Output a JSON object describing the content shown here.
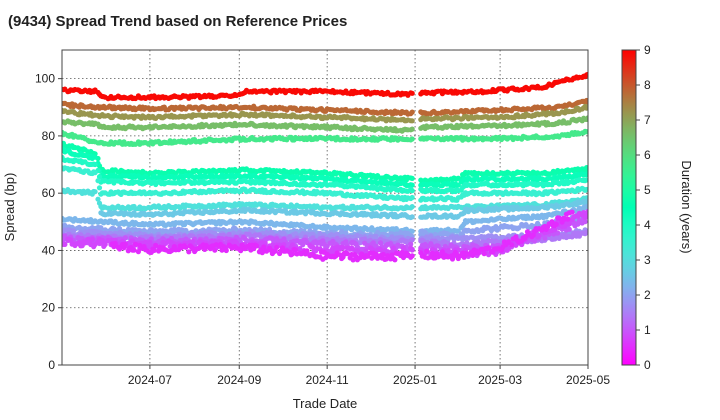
{
  "chart_data": {
    "type": "scatter",
    "title": "(9434)   Spread Trend based on Reference Prices",
    "xlabel": "Trade Date",
    "ylabel": "Spread (bp)",
    "colorbar_label": "Duration (years)",
    "x_range": [
      "2024-05-01",
      "2025-05-01"
    ],
    "ylim": [
      0,
      110
    ],
    "x_ticks": [
      "2024-07",
      "2024-09",
      "2024-11",
      "2025-01",
      "2025-03",
      "2025-05"
    ],
    "y_ticks": [
      0,
      20,
      40,
      60,
      80,
      100
    ],
    "colorbar_range": [
      0,
      9
    ],
    "colorbar_ticks": [
      0,
      1,
      2,
      3,
      4,
      5,
      6,
      7,
      8,
      9
    ],
    "colormap": "rainbow",
    "grid": true,
    "gap_dates": [
      "2024-12-30",
      "2025-01-05"
    ],
    "series": [
      {
        "duration": 8.9,
        "points": [
          [
            "2024-05-01",
            96
          ],
          [
            "2024-05-25",
            95.5
          ],
          [
            "2024-05-28",
            93.5
          ],
          [
            "2024-07-15",
            93.5
          ],
          [
            "2024-08-30",
            94
          ],
          [
            "2024-09-05",
            95.5
          ],
          [
            "2024-11-01",
            95.5
          ],
          [
            "2024-12-28",
            94.5
          ],
          [
            "2025-01-06",
            95
          ],
          [
            "2025-02-15",
            95.5
          ],
          [
            "2025-04-01",
            97
          ],
          [
            "2025-04-10",
            99
          ],
          [
            "2025-05-01",
            101
          ]
        ]
      },
      {
        "duration": 7.8,
        "points": [
          [
            "2024-05-01",
            91
          ],
          [
            "2024-05-28",
            90
          ],
          [
            "2024-07-01",
            89.5
          ],
          [
            "2024-09-05",
            90
          ],
          [
            "2024-11-01",
            89
          ],
          [
            "2024-12-28",
            88
          ],
          [
            "2025-01-06",
            88
          ],
          [
            "2025-03-01",
            89
          ],
          [
            "2025-04-10",
            90
          ],
          [
            "2025-05-01",
            92
          ]
        ]
      },
      {
        "duration": 7.2,
        "points": [
          [
            "2024-05-01",
            88.5
          ],
          [
            "2024-05-28",
            87
          ],
          [
            "2024-07-01",
            86.5
          ],
          [
            "2024-09-05",
            87.5
          ],
          [
            "2024-11-01",
            86.5
          ],
          [
            "2024-12-28",
            85.5
          ],
          [
            "2025-01-06",
            86
          ],
          [
            "2025-03-01",
            86.5
          ],
          [
            "2025-04-10",
            88
          ],
          [
            "2025-05-01",
            90
          ]
        ]
      },
      {
        "duration": 6.6,
        "points": [
          [
            "2024-05-01",
            85
          ],
          [
            "2024-05-25",
            84
          ],
          [
            "2024-05-28",
            83
          ],
          [
            "2024-07-01",
            83
          ],
          [
            "2024-09-05",
            84
          ],
          [
            "2024-11-01",
            83
          ],
          [
            "2024-12-28",
            82
          ],
          [
            "2025-01-06",
            83
          ],
          [
            "2025-03-01",
            83.5
          ],
          [
            "2025-04-10",
            84.5
          ],
          [
            "2025-05-01",
            86
          ]
        ]
      },
      {
        "duration": 5.7,
        "points": [
          [
            "2024-05-01",
            81
          ],
          [
            "2024-05-28",
            77.5
          ],
          [
            "2024-07-01",
            77.5
          ],
          [
            "2024-09-05",
            79
          ],
          [
            "2024-11-01",
            79
          ],
          [
            "2024-12-28",
            79
          ],
          [
            "2025-01-06",
            79
          ],
          [
            "2025-03-01",
            79
          ],
          [
            "2025-04-10",
            80
          ],
          [
            "2025-05-01",
            81.5
          ]
        ]
      },
      {
        "duration": 4.7,
        "points": [
          [
            "2024-05-01",
            77
          ],
          [
            "2024-05-25",
            74
          ],
          [
            "2024-05-28",
            68
          ],
          [
            "2024-07-01",
            67
          ],
          [
            "2024-09-05",
            68
          ],
          [
            "2024-11-01",
            67
          ],
          [
            "2024-12-28",
            65
          ],
          [
            "2025-01-06",
            64
          ],
          [
            "2025-02-01",
            65
          ],
          [
            "2025-02-05",
            67
          ],
          [
            "2025-04-01",
            67
          ],
          [
            "2025-05-01",
            68.5
          ]
        ]
      },
      {
        "duration": 4.3,
        "points": [
          [
            "2024-05-01",
            75
          ],
          [
            "2024-05-25",
            72
          ],
          [
            "2024-05-28",
            66
          ],
          [
            "2024-07-01",
            65.5
          ],
          [
            "2024-09-05",
            66
          ],
          [
            "2024-11-01",
            65
          ],
          [
            "2024-12-28",
            63
          ],
          [
            "2025-01-06",
            63
          ],
          [
            "2025-02-01",
            63
          ],
          [
            "2025-02-05",
            65
          ],
          [
            "2025-04-01",
            65
          ],
          [
            "2025-05-01",
            66.5
          ]
        ]
      },
      {
        "duration": 3.9,
        "points": [
          [
            "2024-05-01",
            72
          ],
          [
            "2024-05-25",
            70
          ],
          [
            "2024-05-28",
            64
          ],
          [
            "2024-07-01",
            63.5
          ],
          [
            "2024-09-05",
            64
          ],
          [
            "2024-11-01",
            63
          ],
          [
            "2024-12-28",
            61
          ],
          [
            "2025-01-06",
            61
          ],
          [
            "2025-02-01",
            61
          ],
          [
            "2025-02-05",
            63
          ],
          [
            "2025-04-01",
            63
          ],
          [
            "2025-05-01",
            64.5
          ]
        ]
      },
      {
        "duration": 3.5,
        "points": [
          [
            "2024-05-01",
            69
          ],
          [
            "2024-05-25",
            67
          ],
          [
            "2024-05-28",
            60
          ],
          [
            "2024-07-01",
            60
          ],
          [
            "2024-09-05",
            61
          ],
          [
            "2024-11-01",
            60
          ],
          [
            "2024-12-28",
            58
          ],
          [
            "2025-01-06",
            58
          ],
          [
            "2025-02-01",
            58
          ],
          [
            "2025-02-05",
            60
          ],
          [
            "2025-04-01",
            60
          ],
          [
            "2025-05-01",
            61.5
          ]
        ]
      },
      {
        "duration": 3.1,
        "points": [
          [
            "2024-05-01",
            61
          ],
          [
            "2024-05-25",
            60
          ],
          [
            "2024-05-28",
            55
          ],
          [
            "2024-07-01",
            55
          ],
          [
            "2024-09-05",
            56
          ],
          [
            "2024-11-01",
            55
          ],
          [
            "2024-12-28",
            55
          ],
          [
            "2025-01-06",
            55
          ],
          [
            "2025-02-01",
            55
          ],
          [
            "2025-04-01",
            56
          ],
          [
            "2025-05-01",
            58
          ]
        ]
      },
      {
        "duration": 2.6,
        "points": [
          [
            "2024-05-28",
            53
          ],
          [
            "2024-07-01",
            52.5
          ],
          [
            "2024-09-05",
            54
          ],
          [
            "2024-11-01",
            53
          ],
          [
            "2024-12-28",
            52
          ],
          [
            "2025-01-06",
            52
          ],
          [
            "2025-02-01",
            52
          ],
          [
            "2025-02-05",
            54
          ],
          [
            "2025-04-01",
            55
          ],
          [
            "2025-05-01",
            57
          ]
        ]
      },
      {
        "duration": 2.3,
        "points": [
          [
            "2024-05-01",
            51
          ],
          [
            "2024-07-01",
            49
          ],
          [
            "2024-09-05",
            50
          ],
          [
            "2024-11-01",
            48
          ],
          [
            "2024-12-28",
            47
          ],
          [
            "2025-01-06",
            47
          ],
          [
            "2025-02-01",
            47
          ],
          [
            "2025-02-05",
            50
          ],
          [
            "2025-04-01",
            52
          ],
          [
            "2025-05-01",
            55
          ]
        ]
      },
      {
        "duration": 2.0,
        "points": [
          [
            "2024-05-01",
            48
          ],
          [
            "2024-07-01",
            46.5
          ],
          [
            "2024-09-05",
            47
          ],
          [
            "2024-11-01",
            46
          ],
          [
            "2024-12-28",
            45.5
          ],
          [
            "2025-01-06",
            46
          ],
          [
            "2025-02-01",
            45
          ],
          [
            "2025-02-05",
            47
          ],
          [
            "2025-04-01",
            49
          ],
          [
            "2025-05-01",
            52
          ]
        ]
      },
      {
        "duration": 1.7,
        "points": [
          [
            "2024-05-01",
            46.5
          ],
          [
            "2024-07-01",
            45
          ],
          [
            "2024-09-05",
            46
          ],
          [
            "2024-11-01",
            45
          ],
          [
            "2024-12-28",
            44
          ],
          [
            "2025-01-06",
            44.5
          ],
          [
            "2025-02-01",
            44
          ],
          [
            "2025-04-01",
            45
          ],
          [
            "2025-05-01",
            47
          ]
        ]
      },
      {
        "duration": 1.4,
        "points": [
          [
            "2024-05-01",
            45
          ],
          [
            "2024-07-01",
            44
          ],
          [
            "2024-09-05",
            45
          ],
          [
            "2024-11-01",
            43.5
          ],
          [
            "2024-12-28",
            43
          ],
          [
            "2025-01-06",
            43
          ],
          [
            "2025-02-01",
            42
          ],
          [
            "2025-04-01",
            44
          ],
          [
            "2025-05-01",
            46
          ]
        ]
      },
      {
        "duration": 1.0,
        "points": [
          [
            "2024-05-01",
            44
          ],
          [
            "2024-07-01",
            43
          ],
          [
            "2024-09-05",
            43.5
          ],
          [
            "2024-11-01",
            42
          ],
          [
            "2024-12-28",
            41
          ],
          [
            "2025-01-06",
            41.5
          ],
          [
            "2025-02-01",
            40.5
          ],
          [
            "2025-03-01",
            41
          ],
          [
            "2025-04-01",
            45
          ],
          [
            "2025-05-01",
            51
          ]
        ]
      },
      {
        "duration": 0.8,
        "points": [
          [
            "2024-05-01",
            43
          ],
          [
            "2024-07-01",
            42
          ],
          [
            "2024-09-05",
            42
          ],
          [
            "2024-11-01",
            40
          ],
          [
            "2024-12-28",
            39.5
          ],
          [
            "2025-01-06",
            40
          ],
          [
            "2025-02-01",
            39
          ],
          [
            "2025-03-01",
            40
          ],
          [
            "2025-04-01",
            47
          ],
          [
            "2025-05-01",
            53
          ]
        ]
      },
      {
        "duration": 0.5,
        "points": [
          [
            "2024-06-05",
            41.5
          ],
          [
            "2024-07-01",
            40.5
          ],
          [
            "2024-09-05",
            41
          ],
          [
            "2024-11-01",
            38
          ],
          [
            "2024-12-28",
            38
          ],
          [
            "2025-01-06",
            38.5
          ],
          [
            "2025-02-01",
            38
          ],
          [
            "2025-03-01",
            41
          ],
          [
            "2025-04-01",
            48
          ],
          [
            "2025-04-20",
            53
          ]
        ]
      }
    ]
  }
}
